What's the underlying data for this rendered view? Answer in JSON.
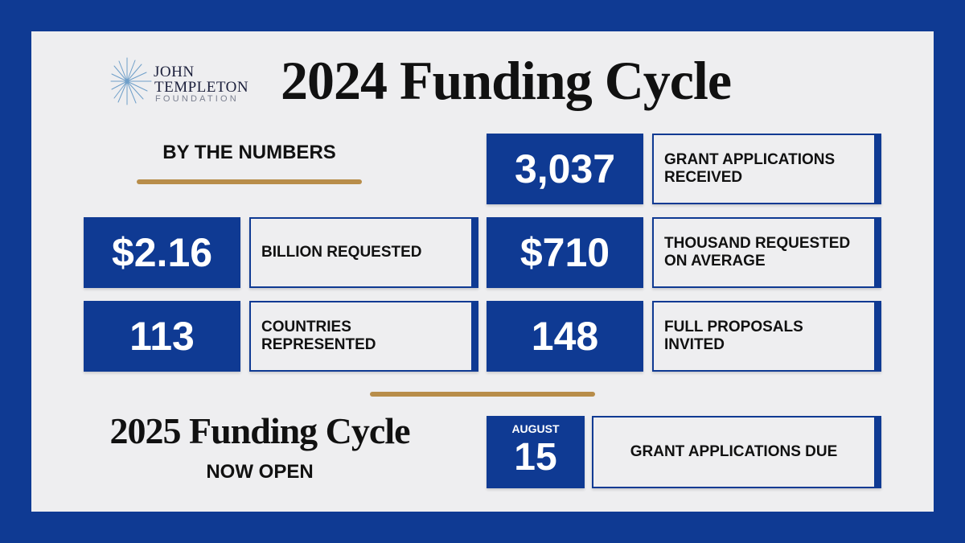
{
  "logo": {
    "line1": "JOHN",
    "line2": "TEMPLETON",
    "line3": "FOUNDATION"
  },
  "title": "2024 Funding Cycle",
  "section_heading": "BY THE NUMBERS",
  "stats": [
    {
      "value": "3,037",
      "label": "GRANT APPLICATIONS RECEIVED"
    },
    {
      "value": "$2.16",
      "label": "BILLION REQUESTED"
    },
    {
      "value": "$710",
      "label": "THOUSAND REQUESTED ON AVERAGE"
    },
    {
      "value": "113",
      "label": "COUNTRIES REPRESENTED"
    },
    {
      "value": "148",
      "label": "FULL PROPOSALS INVITED"
    }
  ],
  "next_cycle": {
    "title": "2025 Funding Cycle",
    "subtitle": "NOW OPEN",
    "due_month": "AUGUST",
    "due_day": "15",
    "due_label": "GRANT APPLICATIONS DUE"
  },
  "colors": {
    "brand_blue": "#0f3a93",
    "gold": "#b88d4a",
    "panel": "#eeeef0"
  }
}
